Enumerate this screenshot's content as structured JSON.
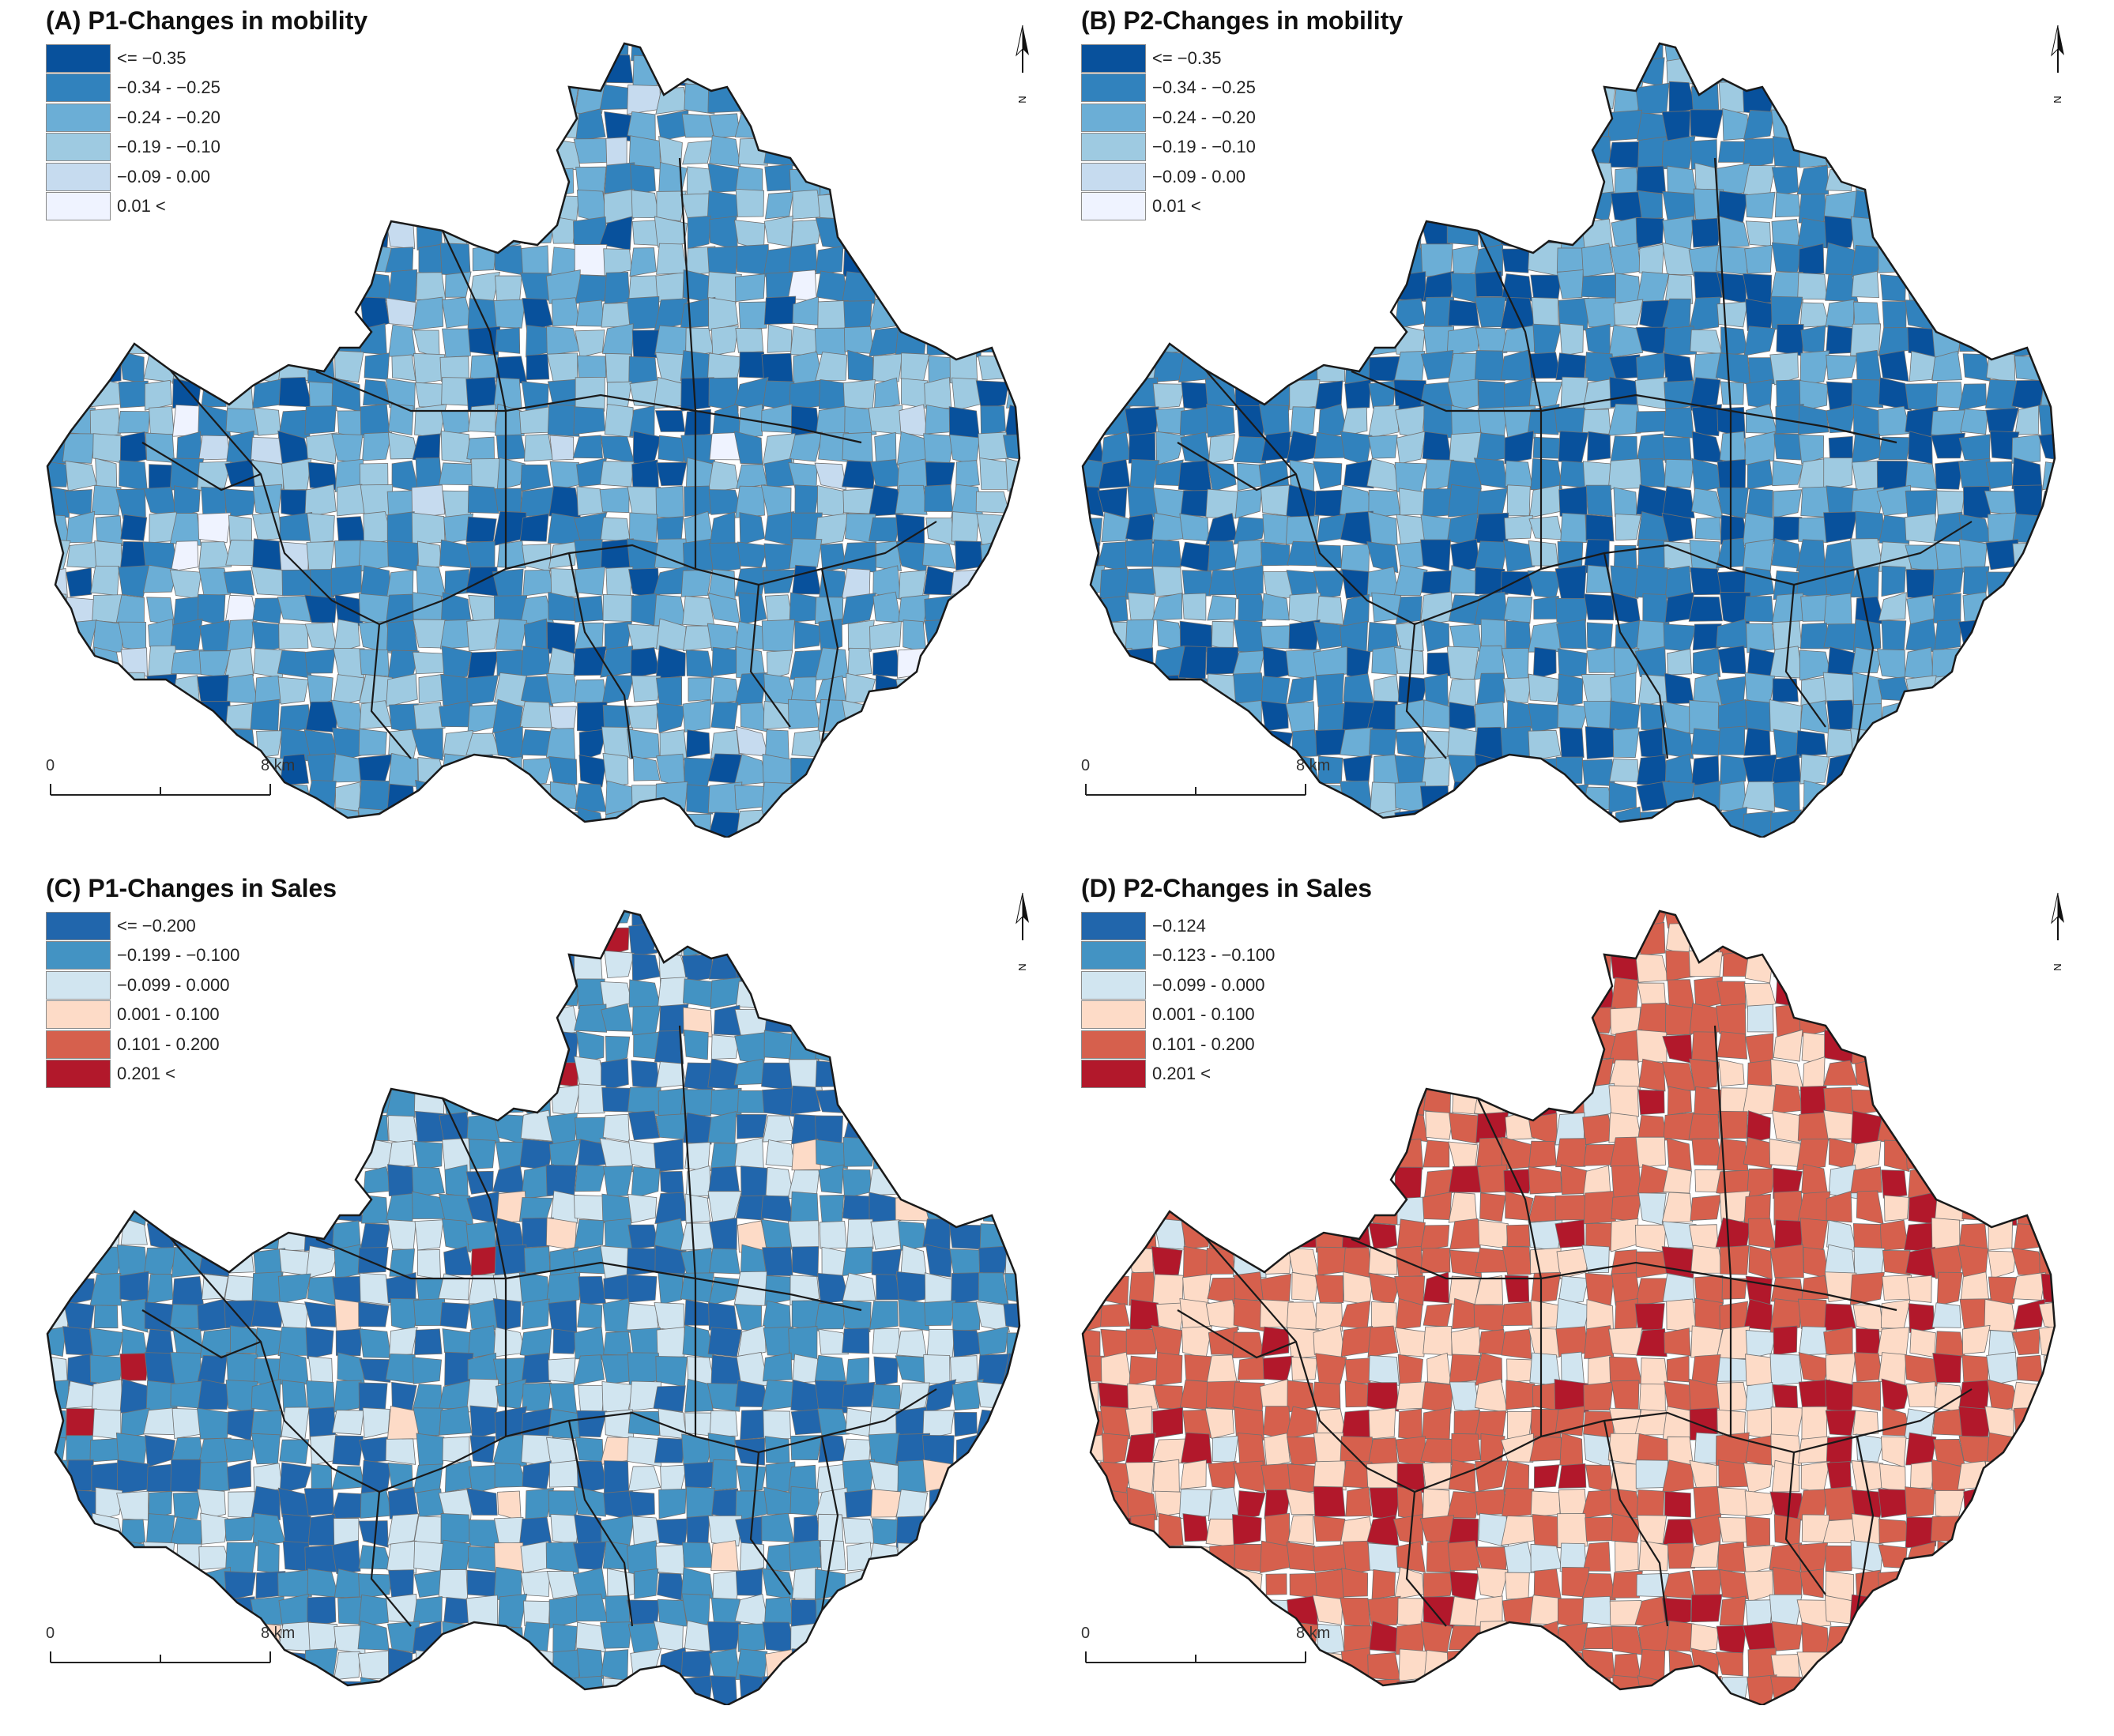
{
  "panels": [
    {
      "title": "(A) P1-Changes in mobility",
      "legend": [
        {
          "label": "<= −0.35",
          "color": "#08519c"
        },
        {
          "label": "−0.34 - −0.25",
          "color": "#3182bd"
        },
        {
          "label": "−0.24 - −0.20",
          "color": "#6baed6"
        },
        {
          "label": "−0.19 - −0.10",
          "color": "#9ecae1"
        },
        {
          "label": "−0.09 - 0.00",
          "color": "#c6dbef"
        },
        {
          "label": "0.01 <",
          "color": "#eff3ff"
        }
      ],
      "north_label": "N",
      "scale": {
        "start": "0",
        "end": "8 km"
      }
    },
    {
      "title": "(B) P2-Changes in mobility",
      "legend": [
        {
          "label": "<= −0.35",
          "color": "#08519c"
        },
        {
          "label": "−0.34 - −0.25",
          "color": "#3182bd"
        },
        {
          "label": "−0.24 - −0.20",
          "color": "#6baed6"
        },
        {
          "label": "−0.19 - −0.10",
          "color": "#9ecae1"
        },
        {
          "label": "−0.09 - 0.00",
          "color": "#c6dbef"
        },
        {
          "label": "0.01 <",
          "color": "#eff3ff"
        }
      ],
      "north_label": "N",
      "scale": {
        "start": "0",
        "end": "8 km"
      }
    },
    {
      "title": "(C) P1-Changes in Sales",
      "legend": [
        {
          "label": "<= −0.200",
          "color": "#2166ac"
        },
        {
          "label": "−0.199 - −0.100",
          "color": "#4393c3"
        },
        {
          "label": "−0.099 - 0.000",
          "color": "#d1e5f0"
        },
        {
          "label": "0.001 - 0.100",
          "color": "#fddbc7"
        },
        {
          "label": "0.101 - 0.200",
          "color": "#d6604d"
        },
        {
          "label": "0.201 <",
          "color": "#b2182b"
        }
      ],
      "north_label": "N",
      "scale": {
        "start": "0",
        "end": "8 km"
      }
    },
    {
      "title": "(D) P2-Changes in Sales",
      "legend": [
        {
          "label": "−0.124",
          "color": "#2166ac"
        },
        {
          "label": "−0.123 - −0.100",
          "color": "#4393c3"
        },
        {
          "label": "−0.099 - 0.000",
          "color": "#d1e5f0"
        },
        {
          "label": "0.001 - 0.100",
          "color": "#fddbc7"
        },
        {
          "label": "0.101 - 0.200",
          "color": "#d6604d"
        },
        {
          "label": "0.201 <",
          "color": "#b2182b"
        }
      ],
      "north_label": "N",
      "scale": {
        "start": "0",
        "end": "8 km"
      }
    }
  ],
  "map_fill_weights": [
    [
      0.12,
      0.3,
      0.28,
      0.27,
      0.02,
      0.01
    ],
    [
      0.2,
      0.38,
      0.27,
      0.15,
      0.0,
      0.0
    ],
    [
      0.3,
      0.4,
      0.26,
      0.03,
      0.0,
      0.01
    ],
    [
      0.0,
      0.0,
      0.08,
      0.28,
      0.52,
      0.12
    ]
  ],
  "colors": {
    "district_border": "#1a1a1a",
    "cell_border": "#707070",
    "background": "#ffffff"
  }
}
